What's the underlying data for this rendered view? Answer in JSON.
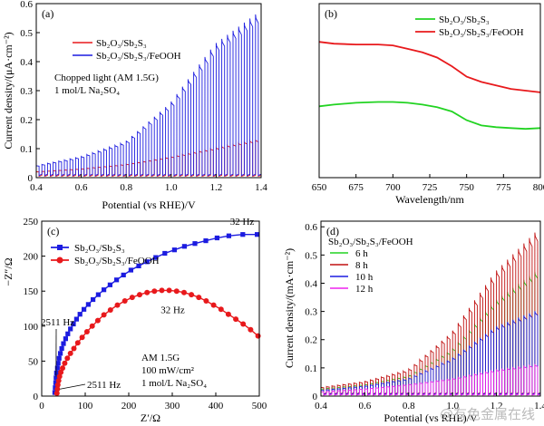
{
  "figure": {
    "watermark": "@有色金属在线",
    "colors": {
      "red": "#e8191c",
      "blue": "#1c1ce0",
      "green": "#22d322",
      "darkred": "#c01010",
      "magenta": "#ee22ee"
    }
  },
  "chart_data": [
    {
      "id": "a",
      "panel_label": "(a)",
      "type": "line",
      "subtype": "chopped-light photocurrent",
      "xlabel": "Potential (vs RHE)/V",
      "ylabel": "Current density/(μA·cm⁻²)",
      "xlim": [
        0.4,
        1.4
      ],
      "ylim": [
        0,
        0.6
      ],
      "xticks": [
        "0.4",
        "0.6",
        "0.8",
        "1.0",
        "1.2",
        "1.4"
      ],
      "yticks": [
        "0",
        "0.1",
        "0.2",
        "0.3",
        "0.4",
        "0.5",
        "0.6"
      ],
      "annotations": [
        "Chopped light (AM 1.5G)",
        "1 mol/L Na₂SO₄"
      ],
      "legend_position": "upper-left",
      "series": [
        {
          "name": "Sb₂O₃/Sb₂S₃",
          "color": "#e8191c",
          "dark_current": 0.008,
          "light_current": [
            [
              0.4,
              0.02
            ],
            [
              0.6,
              0.03
            ],
            [
              0.8,
              0.045
            ],
            [
              1.0,
              0.07
            ],
            [
              1.2,
              0.1
            ],
            [
              1.4,
              0.13
            ]
          ]
        },
        {
          "name": "Sb₂O₃/Sb₂S₃/FeOOH",
          "color": "#1c1ce0",
          "dark_current": 0.012,
          "light_current": [
            [
              0.4,
              0.04
            ],
            [
              0.6,
              0.07
            ],
            [
              0.8,
              0.12
            ],
            [
              1.0,
              0.25
            ],
            [
              1.2,
              0.45
            ],
            [
              1.4,
              0.56
            ]
          ]
        }
      ]
    },
    {
      "id": "b",
      "panel_label": "(b)",
      "type": "line",
      "xlabel": "Wavelength/nm",
      "ylabel": "",
      "xlim": [
        650,
        800
      ],
      "ylim": [
        0,
        1
      ],
      "xticks": [
        "650",
        "675",
        "700",
        "725",
        "750",
        "775",
        "800"
      ],
      "legend_position": "top-right",
      "series": [
        {
          "name": "Sb₂O₃/Sb₂S₃",
          "color": "#22d322",
          "x": [
            650,
            660,
            675,
            690,
            700,
            710,
            720,
            730,
            740,
            750,
            760,
            770,
            780,
            790,
            800
          ],
          "y": [
            0.41,
            0.42,
            0.43,
            0.435,
            0.435,
            0.43,
            0.42,
            0.405,
            0.38,
            0.33,
            0.3,
            0.29,
            0.285,
            0.28,
            0.285
          ]
        },
        {
          "name": "Sb₂O₃/Sb₂S₃/FeOOH",
          "color": "#e8191c",
          "x": [
            650,
            660,
            675,
            690,
            700,
            710,
            720,
            730,
            740,
            750,
            760,
            770,
            780,
            790,
            800
          ],
          "y": [
            0.78,
            0.77,
            0.765,
            0.765,
            0.76,
            0.74,
            0.72,
            0.69,
            0.64,
            0.58,
            0.55,
            0.53,
            0.51,
            0.5,
            0.49
          ]
        }
      ]
    },
    {
      "id": "c",
      "panel_label": "(c)",
      "type": "scatter",
      "subtype": "Nyquist plot",
      "xlabel": "Z′/Ω",
      "ylabel": "−Z″/Ω",
      "xlim": [
        0,
        500
      ],
      "ylim": [
        0,
        250
      ],
      "xticks": [
        "0",
        "100",
        "200",
        "300",
        "400",
        "500"
      ],
      "yticks": [
        "0",
        "50",
        "100",
        "150",
        "200",
        "250"
      ],
      "legend_position": "upper-left",
      "annotations": [
        "AM 1.5G",
        "100 mW/cm²",
        "1 mol/L  Na₂SO₄"
      ],
      "point_labels": [
        {
          "text": "32 Hz",
          "series": 0,
          "x": 462,
          "y": 232
        },
        {
          "text": "32 Hz",
          "series": 1,
          "x": 265,
          "y": 142
        },
        {
          "text": "2511 Hz",
          "series": 0,
          "x": 33,
          "y": 28
        },
        {
          "text": "2511 Hz",
          "series": 1,
          "x": 38,
          "y": 10
        }
      ],
      "series": [
        {
          "name": "Sb₂O₃/Sb₂S₃",
          "color": "#1c1ce0",
          "marker": "square",
          "x": [
            30,
            31,
            32,
            33,
            34,
            36,
            38,
            40,
            43,
            46,
            50,
            55,
            60,
            66,
            73,
            80,
            88,
            97,
            107,
            118,
            130,
            143,
            157,
            172,
            188,
            205,
            223,
            242,
            262,
            283,
            305,
            328,
            352,
            377,
            403,
            430,
            462,
            495
          ],
          "y": [
            5,
            12,
            19,
            26,
            33,
            40,
            47,
            54,
            61,
            68,
            75,
            82,
            89,
            96,
            103,
            110,
            117,
            124,
            131,
            138,
            145,
            152,
            159,
            166,
            173,
            180,
            186,
            192,
            198,
            204,
            209,
            214,
            218,
            222,
            226,
            229,
            231,
            231
          ]
        },
        {
          "name": "Sb₂O₃/Sb₂S₃/FeOOH",
          "color": "#e8191c",
          "marker": "circle",
          "x": [
            35,
            36,
            37,
            39,
            41,
            44,
            48,
            53,
            59,
            66,
            74,
            83,
            93,
            104,
            116,
            129,
            143,
            158,
            174,
            191,
            208,
            225,
            242,
            259,
            276,
            293,
            310,
            327,
            344,
            361,
            378,
            395,
            412,
            429,
            446,
            463,
            480,
            497
          ],
          "y": [
            4,
            10,
            16,
            22,
            28,
            34,
            40,
            47,
            54,
            61,
            68,
            76,
            84,
            92,
            100,
            108,
            116,
            123,
            130,
            136,
            141,
            145,
            148,
            150,
            151,
            151,
            150,
            148,
            145,
            141,
            136,
            130,
            124,
            117,
            110,
            103,
            95,
            86
          ]
        }
      ]
    },
    {
      "id": "d",
      "panel_label": "(d)",
      "type": "line",
      "subtype": "chopped-light photocurrent",
      "title": "Sb₂O₃/Sb₂S₃/FeOOH",
      "xlabel": "Potential (vs RHE)/V",
      "ylabel": "Current density/(mA·cm⁻²)",
      "xlim": [
        0.4,
        1.4
      ],
      "ylim": [
        0,
        0.62
      ],
      "xticks": [
        "0.4",
        "0.6",
        "0.8",
        "1.0",
        "1.2",
        "1.4"
      ],
      "yticks": [
        "0",
        "0.1",
        "0.2",
        "0.3",
        "0.4",
        "0.5",
        "0.6"
      ],
      "legend_position": "upper-left",
      "series": [
        {
          "name": "6 h",
          "color": "#22d322",
          "dark_current": 0.012,
          "light_current": [
            [
              0.4,
              0.025
            ],
            [
              0.6,
              0.04
            ],
            [
              0.8,
              0.07
            ],
            [
              1.0,
              0.16
            ],
            [
              1.2,
              0.33
            ],
            [
              1.4,
              0.44
            ]
          ]
        },
        {
          "name": "8 h",
          "color": "#c01010",
          "dark_current": 0.012,
          "light_current": [
            [
              0.4,
              0.03
            ],
            [
              0.6,
              0.05
            ],
            [
              0.8,
              0.09
            ],
            [
              1.0,
              0.22
            ],
            [
              1.2,
              0.43
            ],
            [
              1.4,
              0.58
            ]
          ]
        },
        {
          "name": "10 h",
          "color": "#1c1ce0",
          "dark_current": 0.01,
          "light_current": [
            [
              0.4,
              0.02
            ],
            [
              0.6,
              0.035
            ],
            [
              0.8,
              0.06
            ],
            [
              1.0,
              0.13
            ],
            [
              1.2,
              0.24
            ],
            [
              1.4,
              0.3
            ]
          ]
        },
        {
          "name": "12 h",
          "color": "#ee22ee",
          "dark_current": 0.006,
          "light_current": [
            [
              0.4,
              0.015
            ],
            [
              0.6,
              0.025
            ],
            [
              0.8,
              0.04
            ],
            [
              1.0,
              0.06
            ],
            [
              1.2,
              0.09
            ],
            [
              1.4,
              0.11
            ]
          ]
        }
      ]
    }
  ]
}
